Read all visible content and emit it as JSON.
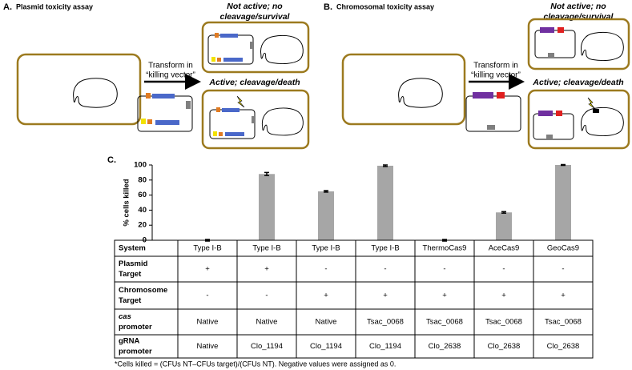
{
  "panels": [
    {
      "label": "A.",
      "title": "Plasmid toxicity assay",
      "arrow_label": [
        "Transform in",
        "“killing vector”"
      ],
      "outcomes": [
        [
          "Not active; no",
          "cleavage/survival"
        ],
        [
          "Active; cleavage/death"
        ]
      ]
    },
    {
      "label": "B.",
      "title": "Chromosomal toxicity assay",
      "arrow_label": [
        "Transform in",
        "“killing vector”"
      ],
      "outcomes": [
        [
          "Not active; no",
          "cleavage/survival"
        ],
        [
          "Active; cleavage/death"
        ]
      ]
    }
  ],
  "chart_data": {
    "type": "bar",
    "label": "C.",
    "y_label": "% cells killed",
    "categories": [
      "Type I-B",
      "Type I-B",
      "Type I-B",
      "Type I-B",
      "ThermoCas9",
      "AceCas9",
      "GeoCas9"
    ],
    "values": [
      0,
      88,
      65,
      99,
      0,
      37,
      100
    ],
    "errors": [
      1,
      2,
      1,
      1,
      1,
      1,
      0.5
    ],
    "color": "#a6a6a6",
    "ylim": [
      0,
      100
    ],
    "yticks": [
      0,
      20,
      40,
      60,
      80,
      100
    ],
    "table": {
      "header": "System",
      "rows": [
        {
          "label": [
            "Plasmid",
            "Target"
          ],
          "cells": [
            "+",
            "+",
            "-",
            "-",
            "-",
            "-",
            "-"
          ]
        },
        {
          "label": [
            "Chromosome",
            "Target"
          ],
          "cells": [
            "-",
            "-",
            "+",
            "+",
            "+",
            "+",
            "+"
          ]
        },
        {
          "label": [
            "cas",
            "promoter"
          ],
          "cells": [
            "Native",
            "Native",
            "Native",
            "Tsac_0068",
            "Tsac_0068",
            "Tsac_0068",
            "Tsac_0068"
          ]
        },
        {
          "label": [
            "gRNA",
            "promoter"
          ],
          "cells": [
            "Native",
            "Clo_1194",
            "Clo_1194",
            "Clo_1194",
            "Clo_2638",
            "Clo_2638",
            "Clo_2638"
          ]
        }
      ]
    },
    "footnote": "*Cells killed = (CFUs NT–CFUs target)/(CFUs NT). Negative values were assigned as 0."
  }
}
